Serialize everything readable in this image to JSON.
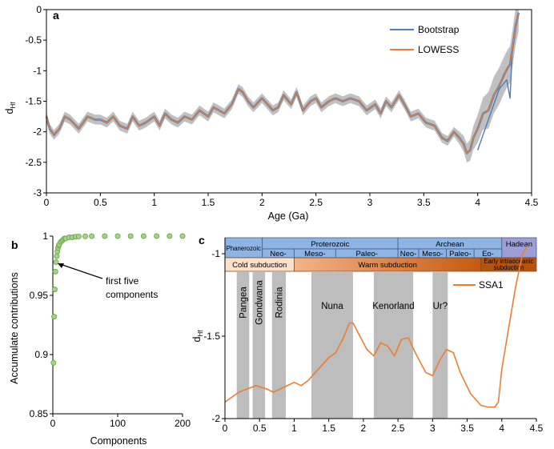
{
  "colors": {
    "bootstrap": "#4a7ebf",
    "lowess": "#ed7d31",
    "ci_band": "#c0c0c0",
    "scatter": "#70ad47",
    "supercontinent_band": "#bdbdbd",
    "timeline_blue": "#8db4e2",
    "timeline_purple": "#9e9ed6",
    "timeline_orange": "#e8a070"
  },
  "chart_data": [
    {
      "panel": "a",
      "type": "line",
      "xlabel": "Age (Ga)",
      "ylabel": "d",
      "ylabel_sub": "Hf",
      "xlim": [
        0,
        4.5
      ],
      "ylim": [
        -3,
        0
      ],
      "x_ticks": [
        "0",
        "0.5",
        "1",
        "1.5",
        "2",
        "2.5",
        "3",
        "3.5",
        "4",
        "4.5"
      ],
      "y_ticks": [
        "0",
        "-0.5",
        "-1",
        "-1.5",
        "-2",
        "-2.5",
        "-3"
      ],
      "grid": false,
      "legend_position": "top-right",
      "series": [
        {
          "name": "LOWESS",
          "x": [
            0.0,
            0.03,
            0.07,
            0.12,
            0.17,
            0.22,
            0.3,
            0.38,
            0.45,
            0.5,
            0.56,
            0.62,
            0.68,
            0.75,
            0.8,
            0.86,
            0.92,
            1.0,
            1.05,
            1.1,
            1.16,
            1.22,
            1.28,
            1.35,
            1.42,
            1.5,
            1.55,
            1.6,
            1.65,
            1.72,
            1.78,
            1.82,
            1.87,
            1.92,
            2.0,
            2.05,
            2.1,
            2.15,
            2.2,
            2.27,
            2.32,
            2.38,
            2.45,
            2.5,
            2.55,
            2.62,
            2.68,
            2.75,
            2.82,
            2.9,
            2.97,
            3.05,
            3.1,
            3.15,
            3.2,
            3.27,
            3.32,
            3.38,
            3.45,
            3.52,
            3.6,
            3.67,
            3.72,
            3.78,
            3.83,
            3.87,
            3.9,
            3.93,
            3.96,
            4.0,
            4.05,
            4.1,
            4.15,
            4.2,
            4.25,
            4.28,
            4.3,
            4.33,
            4.35,
            4.38
          ],
          "y": [
            -1.75,
            -1.95,
            -2.05,
            -1.95,
            -1.75,
            -1.8,
            -1.95,
            -1.75,
            -1.8,
            -1.8,
            -1.85,
            -1.75,
            -1.9,
            -1.95,
            -1.75,
            -1.9,
            -1.85,
            -1.75,
            -1.9,
            -1.7,
            -1.8,
            -1.85,
            -1.75,
            -1.8,
            -1.65,
            -1.75,
            -1.6,
            -1.65,
            -1.7,
            -1.55,
            -1.3,
            -1.35,
            -1.5,
            -1.6,
            -1.45,
            -1.55,
            -1.65,
            -1.6,
            -1.4,
            -1.55,
            -1.35,
            -1.65,
            -1.5,
            -1.45,
            -1.6,
            -1.5,
            -1.45,
            -1.5,
            -1.45,
            -1.5,
            -1.65,
            -1.55,
            -1.7,
            -1.5,
            -1.6,
            -1.4,
            -1.55,
            -1.75,
            -1.7,
            -1.85,
            -1.9,
            -2.1,
            -2.15,
            -2.0,
            -2.1,
            -2.2,
            -2.35,
            -2.3,
            -2.1,
            -1.95,
            -1.7,
            -1.65,
            -1.4,
            -1.25,
            -1.05,
            -0.95,
            -0.9,
            -0.55,
            -0.3,
            -0.05
          ]
        },
        {
          "name": "Bootstrap",
          "x": [
            4.0,
            4.1,
            4.2,
            4.27,
            4.3,
            4.32,
            4.35,
            4.38
          ],
          "y": [
            -2.3,
            -1.8,
            -1.3,
            -1.15,
            -1.45,
            -0.7,
            -0.25,
            -0.05
          ]
        }
      ]
    },
    {
      "panel": "b",
      "type": "scatter",
      "xlabel": "Components",
      "ylabel": "Accumulate contributions",
      "xlim": [
        0,
        200
      ],
      "ylim": [
        0.85,
        1
      ],
      "x_ticks": [
        "0",
        "100",
        "200"
      ],
      "y_ticks": [
        "1",
        "0.95",
        "0.9",
        "0.85"
      ],
      "grid": false,
      "annotation": [
        "first five",
        "components"
      ],
      "series": [
        {
          "x": [
            1,
            2,
            3,
            4,
            5,
            6,
            7,
            8,
            9,
            10,
            12,
            14,
            16,
            18,
            20,
            25,
            30,
            35,
            40,
            50,
            60,
            80,
            100,
            120,
            140,
            160,
            180,
            200
          ],
          "y": [
            0.893,
            0.932,
            0.955,
            0.97,
            0.978,
            0.983,
            0.987,
            0.99,
            0.992,
            0.993,
            0.995,
            0.996,
            0.997,
            0.998,
            0.998,
            0.999,
            0.999,
            0.9995,
            0.9997,
            0.9998,
            0.9999,
            1.0,
            1.0,
            1.0,
            1.0,
            1.0,
            1.0,
            1.0
          ]
        }
      ]
    },
    {
      "panel": "c",
      "type": "line",
      "xlabel": "",
      "ylabel": "d",
      "ylabel_sub": "Hf",
      "xlim": [
        0,
        4.5
      ],
      "ylim": [
        -2,
        -1
      ],
      "x_ticks": [
        "0",
        "0.5",
        "1",
        "1.5",
        "2",
        "2.5",
        "3",
        "3.5",
        "4",
        "4.5"
      ],
      "y_ticks": [
        "-1",
        "-1.5",
        "-2"
      ],
      "grid": false,
      "legend_position": "top-right",
      "series": [
        {
          "name": "SSA1",
          "x": [
            0.0,
            0.2,
            0.45,
            0.6,
            0.7,
            0.85,
            1.0,
            1.1,
            1.2,
            1.35,
            1.5,
            1.6,
            1.7,
            1.8,
            1.85,
            1.95,
            2.05,
            2.15,
            2.25,
            2.35,
            2.45,
            2.55,
            2.65,
            2.75,
            2.9,
            3.0,
            3.1,
            3.2,
            3.3,
            3.4,
            3.55,
            3.7,
            3.8,
            3.9,
            3.95,
            4.0,
            4.1,
            4.2,
            4.3,
            4.38
          ],
          "y": [
            -1.9,
            -1.84,
            -1.8,
            -1.82,
            -1.84,
            -1.81,
            -1.78,
            -1.8,
            -1.77,
            -1.7,
            -1.63,
            -1.6,
            -1.52,
            -1.42,
            -1.42,
            -1.5,
            -1.58,
            -1.62,
            -1.54,
            -1.56,
            -1.62,
            -1.52,
            -1.51,
            -1.6,
            -1.72,
            -1.74,
            -1.65,
            -1.58,
            -1.6,
            -1.72,
            -1.85,
            -1.92,
            -1.93,
            -1.93,
            -1.9,
            -1.7,
            -1.45,
            -1.2,
            -1.0,
            -0.95
          ]
        }
      ],
      "supercontinent_bands": [
        {
          "label": "Pangea",
          "from": 0.17,
          "to": 0.35
        },
        {
          "label": "Gondwana",
          "from": 0.4,
          "to": 0.58
        },
        {
          "label": "Rodinia",
          "from": 0.68,
          "to": 0.88
        },
        {
          "label": "Nuna",
          "from": 1.25,
          "to": 1.85
        },
        {
          "label": "Kenorland",
          "from": 2.15,
          "to": 2.72
        },
        {
          "label": "Ur?",
          "from": 3.0,
          "to": 3.22
        }
      ],
      "timeline": {
        "eons": [
          {
            "label": "Phanerozoic",
            "from": 0.0,
            "to": 0.54
          },
          {
            "label": "Proterozoic",
            "from": 0.54,
            "to": 2.5
          },
          {
            "label": "Archean",
            "from": 2.5,
            "to": 4.0
          },
          {
            "label": "Hadean",
            "from": 4.0,
            "to": 4.5
          }
        ],
        "eras": [
          {
            "label": "Neo-",
            "from": 0.54,
            "to": 1.0
          },
          {
            "label": "Meso-",
            "from": 1.0,
            "to": 1.6
          },
          {
            "label": "Paleo-",
            "from": 1.6,
            "to": 2.5
          },
          {
            "label": "Neo-",
            "from": 2.5,
            "to": 2.8
          },
          {
            "label": "Meso-",
            "from": 2.8,
            "to": 3.2
          },
          {
            "label": "Paleo-",
            "from": 3.2,
            "to": 3.6
          },
          {
            "label": "Eo-",
            "from": 3.6,
            "to": 4.0
          }
        ],
        "subduction": [
          {
            "label": "Cold subduction",
            "from": 0.0,
            "to": 1.0
          },
          {
            "label": "Warm subduction",
            "from": 1.0,
            "to": 3.7
          },
          {
            "label": "Early intraoceanic subduction",
            "from": 3.7,
            "to": 4.5
          }
        ]
      }
    }
  ]
}
